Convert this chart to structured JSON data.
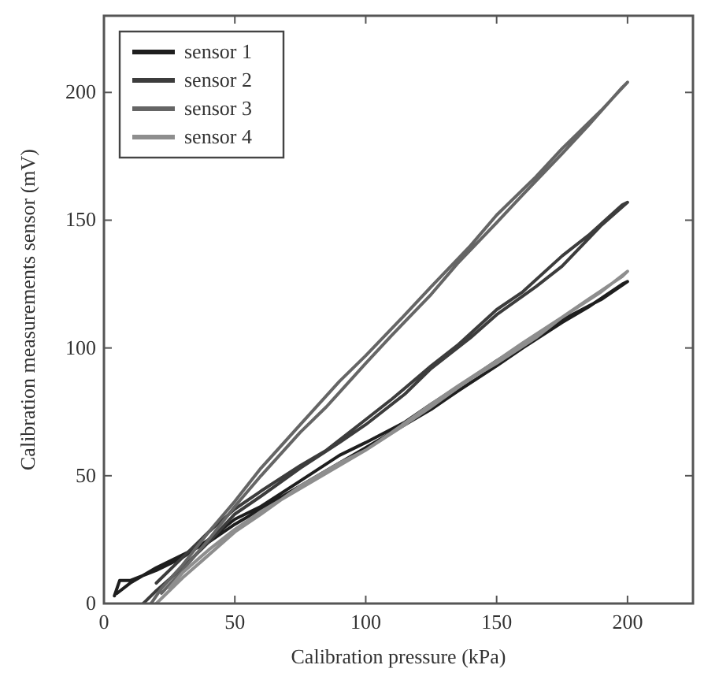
{
  "chart_data": {
    "type": "line",
    "xlabel": "Calibration pressure (kPa)",
    "ylabel": "Calibration measurements sensor (mV)",
    "xlim": [
      0,
      225
    ],
    "ylim": [
      0,
      230
    ],
    "xticks": [
      0,
      50,
      100,
      150,
      200
    ],
    "yticks": [
      0,
      50,
      100,
      150,
      200
    ],
    "grid": false,
    "legend": "top left",
    "line_style": "solid",
    "marker": "none",
    "series": [
      {
        "name": "sensor 1",
        "color": "#1e1e1e",
        "x": [
          4,
          6,
          10,
          20,
          30,
          40,
          50,
          60,
          75,
          90,
          100,
          115,
          125,
          140,
          150,
          165,
          175,
          190,
          200,
          198,
          185,
          175,
          160,
          150,
          135,
          125,
          110,
          100,
          85,
          75,
          60,
          50,
          40,
          30,
          20,
          10,
          5
        ],
        "values": [
          3,
          9,
          9,
          13,
          18,
          25,
          33,
          38,
          48,
          58,
          63,
          71,
          78,
          88,
          95,
          104,
          111,
          119,
          126,
          125,
          116,
          110,
          100,
          93,
          83,
          76,
          67,
          61,
          52,
          46,
          37,
          31,
          24,
          19,
          14,
          8,
          4
        ]
      },
      {
        "name": "sensor 2",
        "color": "#3c3c3c",
        "x": [
          15,
          20,
          30,
          40,
          50,
          60,
          75,
          90,
          100,
          115,
          125,
          140,
          150,
          165,
          175,
          190,
          200,
          198,
          185,
          175,
          160,
          150,
          135,
          125,
          110,
          100,
          85,
          75,
          60,
          50,
          40,
          30,
          20
        ],
        "values": [
          0,
          5,
          14,
          24,
          35,
          42,
          53,
          63,
          70,
          82,
          92,
          104,
          113,
          124,
          132,
          148,
          157,
          156,
          144,
          136,
          122,
          115,
          101,
          93,
          80,
          72,
          60,
          54,
          44,
          37,
          28,
          18,
          8
        ]
      },
      {
        "name": "sensor 3",
        "color": "#656565",
        "x": [
          18,
          22,
          30,
          40,
          50,
          60,
          75,
          90,
          100,
          115,
          125,
          140,
          150,
          165,
          175,
          190,
          200,
          198,
          185,
          175,
          160,
          150,
          135,
          125,
          110,
          100,
          85,
          75,
          60,
          50,
          40,
          30,
          22
        ],
        "values": [
          0,
          6,
          15,
          28,
          40,
          53,
          70,
          87,
          97,
          113,
          124,
          140,
          152,
          167,
          178,
          193,
          204,
          202,
          187,
          176,
          160,
          149,
          133,
          121,
          105,
          94,
          77,
          67,
          50,
          38,
          25,
          13,
          4
        ]
      },
      {
        "name": "sensor 4",
        "color": "#8e8e8e",
        "x": [
          20,
          25,
          30,
          40,
          50,
          60,
          75,
          90,
          100,
          115,
          125,
          140,
          150,
          165,
          175,
          190,
          200,
          198,
          185,
          175,
          160,
          150,
          135,
          125,
          110,
          100,
          85,
          75,
          60,
          50,
          40,
          30,
          25
        ],
        "values": [
          0,
          5,
          10,
          19,
          28,
          35,
          46,
          55,
          60,
          70,
          77,
          88,
          94,
          104,
          112,
          122,
          130,
          128,
          119,
          112,
          102,
          95,
          85,
          78,
          67,
          60,
          51,
          45,
          36,
          29,
          21,
          12,
          6
        ]
      }
    ]
  }
}
